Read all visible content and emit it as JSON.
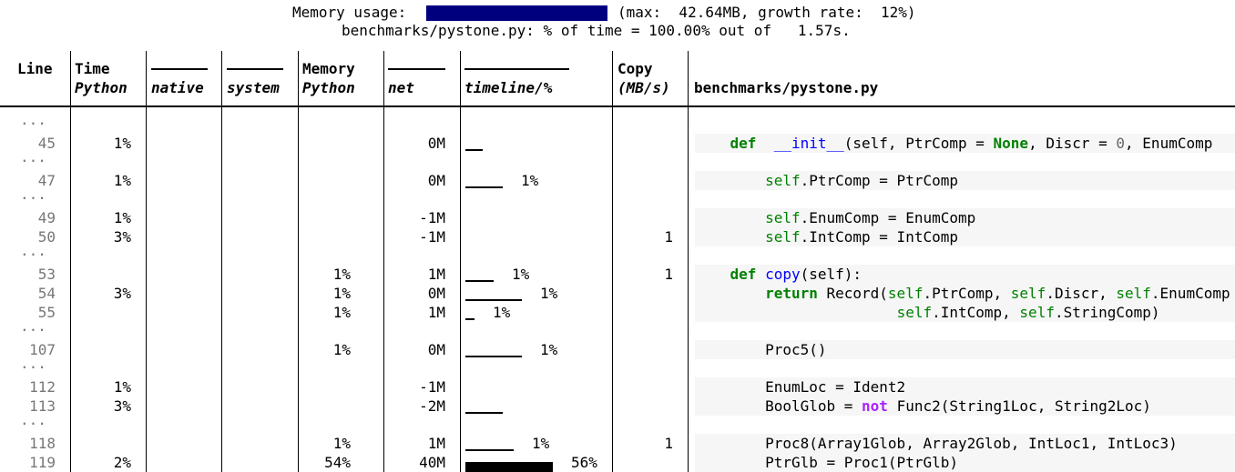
{
  "summary": {
    "memory_label": "Memory usage:",
    "memory_stats": "(max:  42.64MB, growth rate:  12%)",
    "file_summary": "benchmarks/pystone.py: % of time = 100.00% out of   1.57s."
  },
  "columns": {
    "line": "Line",
    "time_top": "Time",
    "time_python": "Python",
    "native": "native",
    "system": "system",
    "memory_top": "Memory",
    "memory_python": "Python",
    "net": "net",
    "timeline": "timeline/%",
    "copy_top": "Copy",
    "copy_unit": "(MB/s)",
    "file": "benchmarks/pystone.py"
  },
  "ellipsis": "...",
  "rows": [
    {
      "line": "45",
      "time_python": "1%",
      "memory_python": "",
      "net": "0M",
      "timeline_pct": "",
      "copy": "",
      "timeline_fraction": 0.12
    },
    {
      "line": "47",
      "time_python": "1%",
      "memory_python": "",
      "net": "0M",
      "timeline_pct": "1%",
      "copy": "",
      "timeline_fraction": 0.25
    },
    {
      "line": "49",
      "time_python": "1%",
      "memory_python": "",
      "net": "-1M",
      "timeline_pct": "",
      "copy": "",
      "timeline_fraction": 0
    },
    {
      "line": "50",
      "time_python": "3%",
      "memory_python": "",
      "net": "-1M",
      "timeline_pct": "",
      "copy": "1",
      "timeline_fraction": 0
    },
    {
      "line": "53",
      "time_python": "",
      "memory_python": "1%",
      "net": "1M",
      "timeline_pct": "1%",
      "copy": "1",
      "timeline_fraction": 0.19
    },
    {
      "line": "54",
      "time_python": "3%",
      "memory_python": "1%",
      "net": "0M",
      "timeline_pct": "1%",
      "copy": "",
      "timeline_fraction": 0.38
    },
    {
      "line": "55",
      "time_python": "",
      "memory_python": "1%",
      "net": "1M",
      "timeline_pct": "1%",
      "copy": "",
      "timeline_fraction": 0.06
    },
    {
      "line": "107",
      "time_python": "",
      "memory_python": "1%",
      "net": "0M",
      "timeline_pct": "1%",
      "copy": "",
      "timeline_fraction": 0.38
    },
    {
      "line": "112",
      "time_python": "1%",
      "memory_python": "",
      "net": "-1M",
      "timeline_pct": "",
      "copy": "",
      "timeline_fraction": 0
    },
    {
      "line": "113",
      "time_python": "3%",
      "memory_python": "",
      "net": "-2M",
      "timeline_pct": "",
      "copy": "",
      "timeline_fraction": 0.25
    },
    {
      "line": "118",
      "time_python": "",
      "memory_python": "1%",
      "net": "1M",
      "timeline_pct": "1%",
      "copy": "1",
      "timeline_fraction": 0.33
    },
    {
      "line": "119",
      "time_python": "2%",
      "memory_python": "54%",
      "net": "40M",
      "timeline_pct": "56%",
      "copy": "",
      "timeline_fraction": 0.59
    }
  ],
  "code_lines": [
    {
      "indent": "    ",
      "tokens": [
        [
          "kw",
          "def"
        ],
        [
          "",
          "  "
        ],
        [
          "fn",
          "__init__"
        ],
        [
          "",
          "(self, PtrComp = "
        ],
        [
          "kw",
          "None"
        ],
        [
          "",
          ", Discr = "
        ],
        [
          "num",
          "0"
        ],
        [
          "",
          ", EnumComp"
        ]
      ]
    },
    {
      "indent": "        ",
      "tokens": [
        [
          "sl",
          "self"
        ],
        [
          "",
          ".PtrComp = PtrComp"
        ]
      ]
    },
    {
      "indent": "        ",
      "tokens": [
        [
          "sl",
          "self"
        ],
        [
          "",
          ".EnumComp = EnumComp"
        ]
      ]
    },
    {
      "indent": "        ",
      "tokens": [
        [
          "sl",
          "self"
        ],
        [
          "",
          ".IntComp = IntComp"
        ]
      ]
    },
    {
      "indent": "    ",
      "tokens": [
        [
          "kw",
          "def"
        ],
        [
          "",
          " "
        ],
        [
          "fn",
          "copy"
        ],
        [
          "",
          "(self):"
        ]
      ]
    },
    {
      "indent": "        ",
      "tokens": [
        [
          "kw",
          "return"
        ],
        [
          "",
          " Record("
        ],
        [
          "sl",
          "self"
        ],
        [
          "",
          ".PtrComp, "
        ],
        [
          "sl",
          "self"
        ],
        [
          "",
          ".Discr, "
        ],
        [
          "sl",
          "self"
        ],
        [
          "",
          ".EnumComp"
        ]
      ]
    },
    {
      "indent": "                       ",
      "tokens": [
        [
          "sl",
          "self"
        ],
        [
          "",
          ".IntComp, "
        ],
        [
          "sl",
          "self"
        ],
        [
          "",
          ".StringComp)"
        ]
      ]
    },
    {
      "indent": "        ",
      "tokens": [
        [
          "",
          "Proc5()"
        ]
      ]
    },
    {
      "indent": "        ",
      "tokens": [
        [
          "",
          "EnumLoc = Ident2"
        ]
      ]
    },
    {
      "indent": "        ",
      "tokens": [
        [
          "",
          "BoolGlob = "
        ],
        [
          "kw2",
          "not"
        ],
        [
          "",
          " Func2(String1Loc, String2Loc)"
        ]
      ]
    },
    {
      "indent": "        ",
      "tokens": [
        [
          "",
          "Proc8(Array1Glob, Array2Glob, IntLoc1, IntLoc3)"
        ]
      ]
    },
    {
      "indent": "        ",
      "tokens": [
        [
          "",
          "PtrGlb = Proc1(PtrGlb)"
        ]
      ]
    }
  ],
  "memory_usage_fraction": 1.0,
  "colors": {
    "memory_bar": "#00007f",
    "keyword": "#008000",
    "operator_keyword": "#aa22ff",
    "function": "#0000ff",
    "number": "#666666",
    "line_number": "#777777",
    "code_bg": "#f6f6f6"
  }
}
